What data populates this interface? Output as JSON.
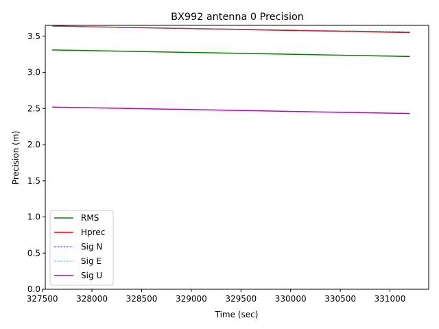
{
  "chart_data": {
    "type": "line",
    "title": "BX992 antenna 0 Precision",
    "xlabel": "Time (sec)",
    "ylabel": "Precision (m)",
    "xlim": [
      327530,
      331390
    ],
    "ylim": [
      0,
      3.65
    ],
    "x_ticks": [
      327500,
      328000,
      328500,
      329000,
      329500,
      330000,
      330500,
      331000
    ],
    "x_tick_labels": [
      "327500",
      "328000",
      "328500",
      "329000",
      "329500",
      "330000",
      "330500",
      "331000"
    ],
    "y_ticks": [
      0,
      0.5,
      1.0,
      1.5,
      2.0,
      2.5,
      3.0,
      3.5
    ],
    "y_tick_labels": [
      "0.0",
      "0.5",
      "1.0",
      "1.5",
      "2.0",
      "2.5",
      "3.0",
      "3.5"
    ],
    "grid": false,
    "legend_position": "lower-left",
    "series": [
      {
        "name": "RMS",
        "color": "#008000",
        "style": "solid",
        "x": [
          327600,
          331200
        ],
        "values": [
          3.31,
          3.22
        ]
      },
      {
        "name": "Hprec",
        "color": "#ff0000",
        "style": "solid",
        "x": [
          327600,
          331200
        ],
        "values": [
          3.64,
          3.55
        ]
      },
      {
        "name": "Sig N",
        "color": "#00008b",
        "style": "dashed",
        "x": [
          327600,
          331200
        ],
        "values": [
          3.64,
          3.56
        ]
      },
      {
        "name": "Sig E",
        "color": "#00bfbf",
        "style": "dashed",
        "x": [
          327600,
          331200
        ],
        "values": [
          3.64,
          3.56
        ]
      },
      {
        "name": "Sig U",
        "color": "#bf00bf",
        "style": "solid",
        "x": [
          327600,
          331200
        ],
        "values": [
          2.52,
          2.43
        ]
      }
    ]
  }
}
